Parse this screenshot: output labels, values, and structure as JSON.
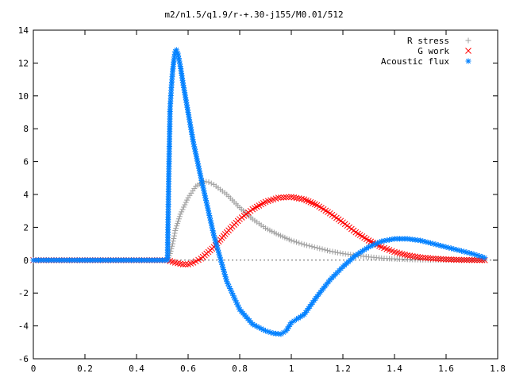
{
  "chart_data": {
    "type": "scatter",
    "title": "m2/n1.5/q1.9/r-+.30-j155/M0.01/512",
    "xlabel": "",
    "ylabel": "",
    "xlim": [
      0,
      1.8
    ],
    "ylim": [
      -6,
      14
    ],
    "x_ticks": [
      0,
      0.2,
      0.4,
      0.6,
      0.8,
      1,
      1.2,
      1.4,
      1.6,
      1.8
    ],
    "x_tick_labels": [
      "0",
      "0.2",
      "0.4",
      "0.6",
      "0.8",
      "1",
      "1.2",
      "1.4",
      "1.6",
      "1.8"
    ],
    "y_ticks": [
      -6,
      -4,
      -2,
      0,
      2,
      4,
      6,
      8,
      10,
      12,
      14
    ],
    "y_tick_labels": [
      "-6",
      "-4",
      "-2",
      "0",
      "2",
      "4",
      "6",
      "8",
      "10",
      "12",
      "14"
    ],
    "grid": false,
    "legend_position": "top-right",
    "series": [
      {
        "name": "R stress",
        "marker": "plus",
        "color": "#a0a0a0",
        "x": [
          0.0,
          0.1,
          0.2,
          0.3,
          0.4,
          0.52,
          0.53,
          0.54,
          0.55,
          0.57,
          0.6,
          0.63,
          0.66,
          0.68,
          0.7,
          0.75,
          0.8,
          0.85,
          0.9,
          0.95,
          1.0,
          1.05,
          1.1,
          1.15,
          1.2,
          1.25,
          1.3,
          1.35,
          1.4,
          1.45,
          1.5,
          1.55,
          1.6,
          1.65,
          1.7,
          1.75
        ],
        "y": [
          0.0,
          0.0,
          0.0,
          0.0,
          0.0,
          0.0,
          0.4,
          1.0,
          1.8,
          2.8,
          3.8,
          4.5,
          4.8,
          4.75,
          4.6,
          4.0,
          3.2,
          2.5,
          1.95,
          1.55,
          1.2,
          0.95,
          0.75,
          0.55,
          0.4,
          0.3,
          0.2,
          0.12,
          0.08,
          0.05,
          0.03,
          0.02,
          0.01,
          0.0,
          0.0,
          0.0
        ]
      },
      {
        "name": "G work",
        "marker": "cross",
        "color": "#ff0000",
        "x": [
          0.0,
          0.1,
          0.2,
          0.3,
          0.4,
          0.52,
          0.55,
          0.58,
          0.6,
          0.62,
          0.65,
          0.7,
          0.75,
          0.8,
          0.85,
          0.9,
          0.95,
          1.0,
          1.05,
          1.1,
          1.15,
          1.2,
          1.25,
          1.3,
          1.35,
          1.4,
          1.45,
          1.5,
          1.55,
          1.6,
          1.65,
          1.7,
          1.75
        ],
        "y": [
          0.0,
          0.0,
          0.0,
          0.0,
          0.0,
          0.0,
          -0.15,
          -0.25,
          -0.25,
          -0.15,
          0.1,
          0.8,
          1.7,
          2.5,
          3.1,
          3.55,
          3.8,
          3.85,
          3.7,
          3.35,
          2.85,
          2.3,
          1.7,
          1.2,
          0.8,
          0.5,
          0.3,
          0.17,
          0.1,
          0.05,
          0.02,
          0.01,
          0.0
        ]
      },
      {
        "name": "Acoustic flux",
        "marker": "star",
        "color": "#0080ff",
        "x": [
          0.0,
          0.1,
          0.2,
          0.3,
          0.4,
          0.52,
          0.525,
          0.53,
          0.535,
          0.54,
          0.545,
          0.55,
          0.555,
          0.56,
          0.57,
          0.58,
          0.6,
          0.62,
          0.65,
          0.7,
          0.75,
          0.8,
          0.85,
          0.9,
          0.93,
          0.96,
          0.98,
          1.0,
          1.02,
          1.05,
          1.1,
          1.15,
          1.2,
          1.25,
          1.3,
          1.35,
          1.4,
          1.45,
          1.5,
          1.55,
          1.6,
          1.65,
          1.7,
          1.75
        ],
        "y": [
          0.0,
          0.0,
          0.0,
          0.0,
          0.0,
          0.0,
          5.1,
          9.2,
          10.5,
          11.5,
          12.2,
          12.7,
          12.8,
          12.6,
          11.8,
          10.8,
          9.0,
          7.2,
          5.0,
          1.5,
          -1.3,
          -3.0,
          -3.9,
          -4.3,
          -4.45,
          -4.5,
          -4.3,
          -3.8,
          -3.6,
          -3.3,
          -2.2,
          -1.2,
          -0.4,
          0.3,
          0.8,
          1.15,
          1.3,
          1.3,
          1.2,
          1.0,
          0.8,
          0.6,
          0.4,
          0.15
        ]
      }
    ]
  }
}
